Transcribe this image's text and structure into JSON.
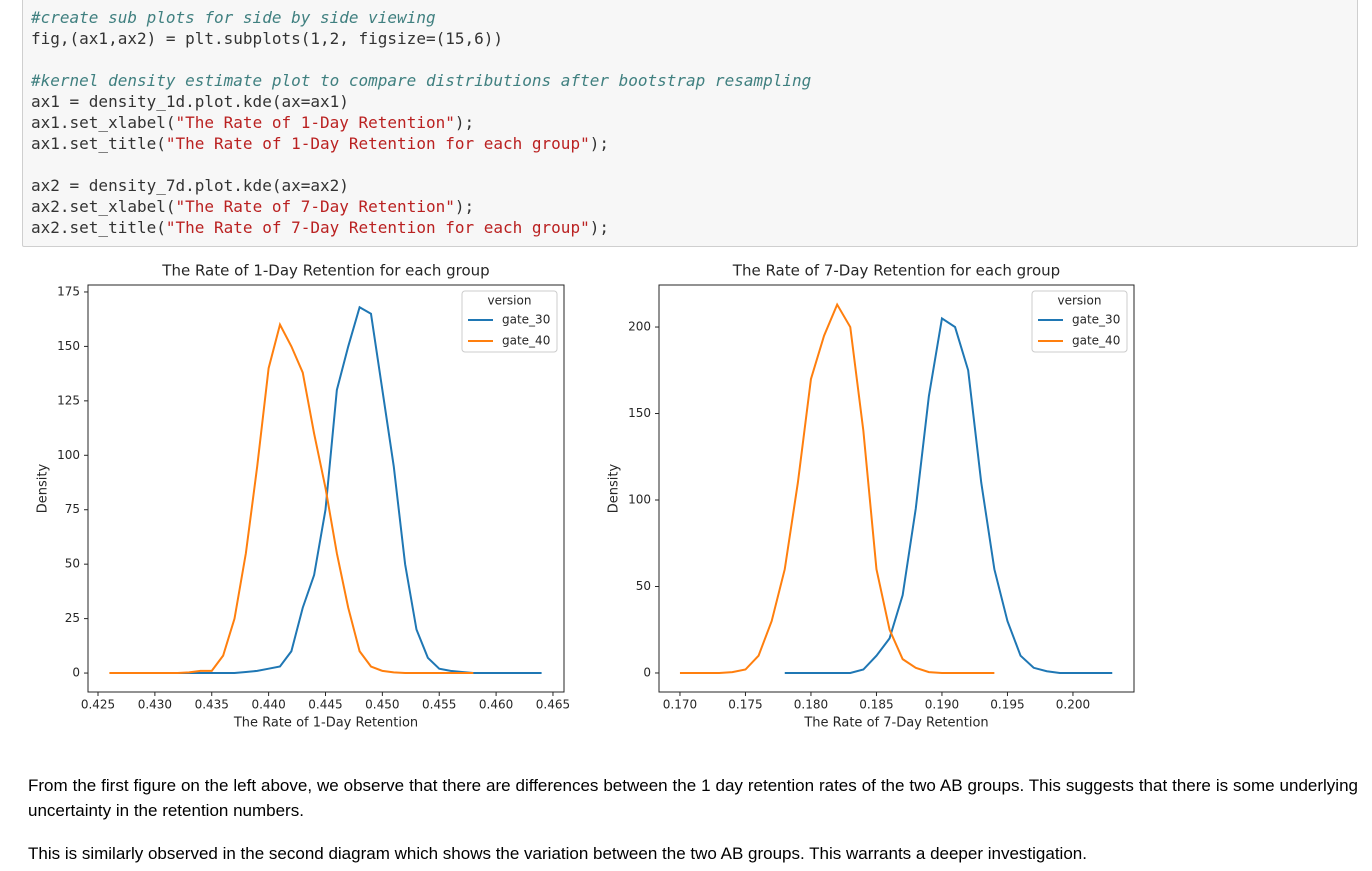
{
  "code": {
    "blocks": [
      [
        [
          "#create sub plots for side by side viewing"
        ],
        [
          "fig,(ax1,ax2) = plt.subplots(1,2, figsize=(15,6))"
        ]
      ],
      [
        [
          "#kernel density estimate plot to compare distributions after bootstrap resampling"
        ],
        [
          "ax1 = density_1d.plot.kde(ax=ax1)"
        ],
        [
          "ax1.set_xlabel(",
          "\"The Rate of 1-Day Retention\"",
          ");"
        ],
        [
          "ax1.set_title(",
          "\"The Rate of 1-Day Retention for each group\"",
          ");"
        ]
      ],
      [
        [
          "ax2 = density_7d.plot.kde(ax=ax2)"
        ],
        [
          "ax2.set_xlabel(",
          "\"The Rate of 7-Day Retention\"",
          ");"
        ],
        [
          "ax2.set_title(",
          "\"The Rate of 7-Day Retention for each group\"",
          ");"
        ]
      ]
    ]
  },
  "chart_data": [
    {
      "type": "line",
      "title": "The Rate of 1-Day Retention for each group",
      "xlabel": "The Rate of 1-Day Retention",
      "ylabel": "Density",
      "legend_title": "version",
      "legend": "upper right",
      "x": [
        0.426,
        0.427,
        0.428,
        0.429,
        0.43,
        0.431,
        0.432,
        0.433,
        0.434,
        0.435,
        0.436,
        0.437,
        0.438,
        0.439,
        0.44,
        0.441,
        0.442,
        0.443,
        0.444,
        0.445,
        0.446,
        0.447,
        0.448,
        0.449,
        0.45,
        0.451,
        0.452,
        0.453,
        0.454,
        0.455,
        0.456,
        0.457,
        0.458,
        0.459,
        0.46,
        0.461,
        0.462,
        0.463,
        0.464
      ],
      "series": [
        {
          "name": "gate_30",
          "color": "#1f77b4",
          "values": [
            null,
            null,
            null,
            null,
            null,
            null,
            0,
            0,
            0,
            0,
            0,
            0,
            0.5,
            1,
            2,
            3,
            10,
            30,
            45,
            75,
            130,
            150,
            168,
            165,
            130,
            95,
            50,
            20,
            7,
            2,
            1,
            0.5,
            0,
            0,
            0,
            0,
            0,
            0,
            0
          ]
        },
        {
          "name": "gate_40",
          "color": "#ff7f0e",
          "values": [
            0,
            0,
            0,
            0,
            0,
            0,
            0,
            0.3,
            1,
            1,
            8,
            25,
            55,
            95,
            140,
            160,
            150,
            138,
            110,
            85,
            55,
            30,
            10,
            3,
            1,
            0.3,
            0,
            0,
            0,
            0,
            0,
            0,
            0,
            null,
            null,
            null,
            null,
            null,
            null
          ]
        }
      ],
      "xlim": [
        0.42412,
        0.46597
      ],
      "ylim": [
        -8.7,
        178.2
      ],
      "xticks": [
        0.425,
        {
          "value": 0.43,
          "label": "0.430"
        },
        0.435,
        {
          "value": 0.44,
          "label": "0.440"
        },
        0.445,
        {
          "value": 0.45,
          "label": "0.450"
        },
        0.455,
        {
          "value": 0.46,
          "label": "0.460"
        },
        0.465
      ],
      "yticks": [
        0,
        25,
        50,
        75,
        100,
        125,
        150,
        175
      ]
    },
    {
      "type": "line",
      "title": "The Rate of 7-Day Retention for each group",
      "xlabel": "The Rate of 7-Day Retention",
      "ylabel": "Density",
      "legend_title": "version",
      "legend": "upper right",
      "x": [
        0.17,
        0.171,
        0.172,
        0.173,
        0.174,
        0.175,
        0.176,
        0.177,
        0.178,
        0.179,
        0.18,
        0.181,
        0.182,
        0.183,
        0.184,
        0.185,
        0.186,
        0.187,
        0.188,
        0.189,
        0.19,
        0.191,
        0.192,
        0.193,
        0.194,
        0.195,
        0.196,
        0.197,
        0.198,
        0.199,
        0.2,
        0.201,
        0.202,
        0.203
      ],
      "series": [
        {
          "name": "gate_30",
          "color": "#1f77b4",
          "values": [
            null,
            null,
            null,
            null,
            null,
            null,
            null,
            null,
            0,
            0,
            0,
            0,
            0,
            0,
            2,
            10,
            20,
            45,
            95,
            160,
            205,
            200,
            175,
            110,
            60,
            30,
            10,
            3,
            1,
            0,
            0,
            0,
            0,
            0
          ]
        },
        {
          "name": "gate_40",
          "color": "#ff7f0e",
          "values": [
            0,
            0,
            0,
            0,
            0.5,
            2,
            10,
            30,
            60,
            110,
            170,
            195,
            213,
            200,
            140,
            60,
            25,
            8,
            3,
            0.5,
            0,
            0,
            0,
            0,
            0,
            null,
            null,
            null,
            null,
            null,
            null,
            null,
            null,
            null
          ]
        }
      ],
      "xlim": [
        0.1684,
        0.20466
      ],
      "ylim": [
        -11,
        224.3
      ],
      "xticks": [
        {
          "value": 0.17,
          "label": "0.170"
        },
        0.175,
        {
          "value": 0.18,
          "label": "0.180"
        },
        0.185,
        {
          "value": 0.19,
          "label": "0.190"
        },
        0.195,
        {
          "value": 0.2,
          "label": "0.200"
        }
      ],
      "yticks": [
        0,
        50,
        100,
        150,
        200
      ]
    }
  ],
  "text": {
    "paragraphs": [
      "From the first figure on the left above, we observe that there are differences between the 1 day retention rates of the two AB groups. This suggests that there is some underlying uncertainty in the retention numbers.",
      "This is similarly observed in the second diagram which shows the variation between the two AB groups. This warrants a deeper investigation."
    ]
  }
}
